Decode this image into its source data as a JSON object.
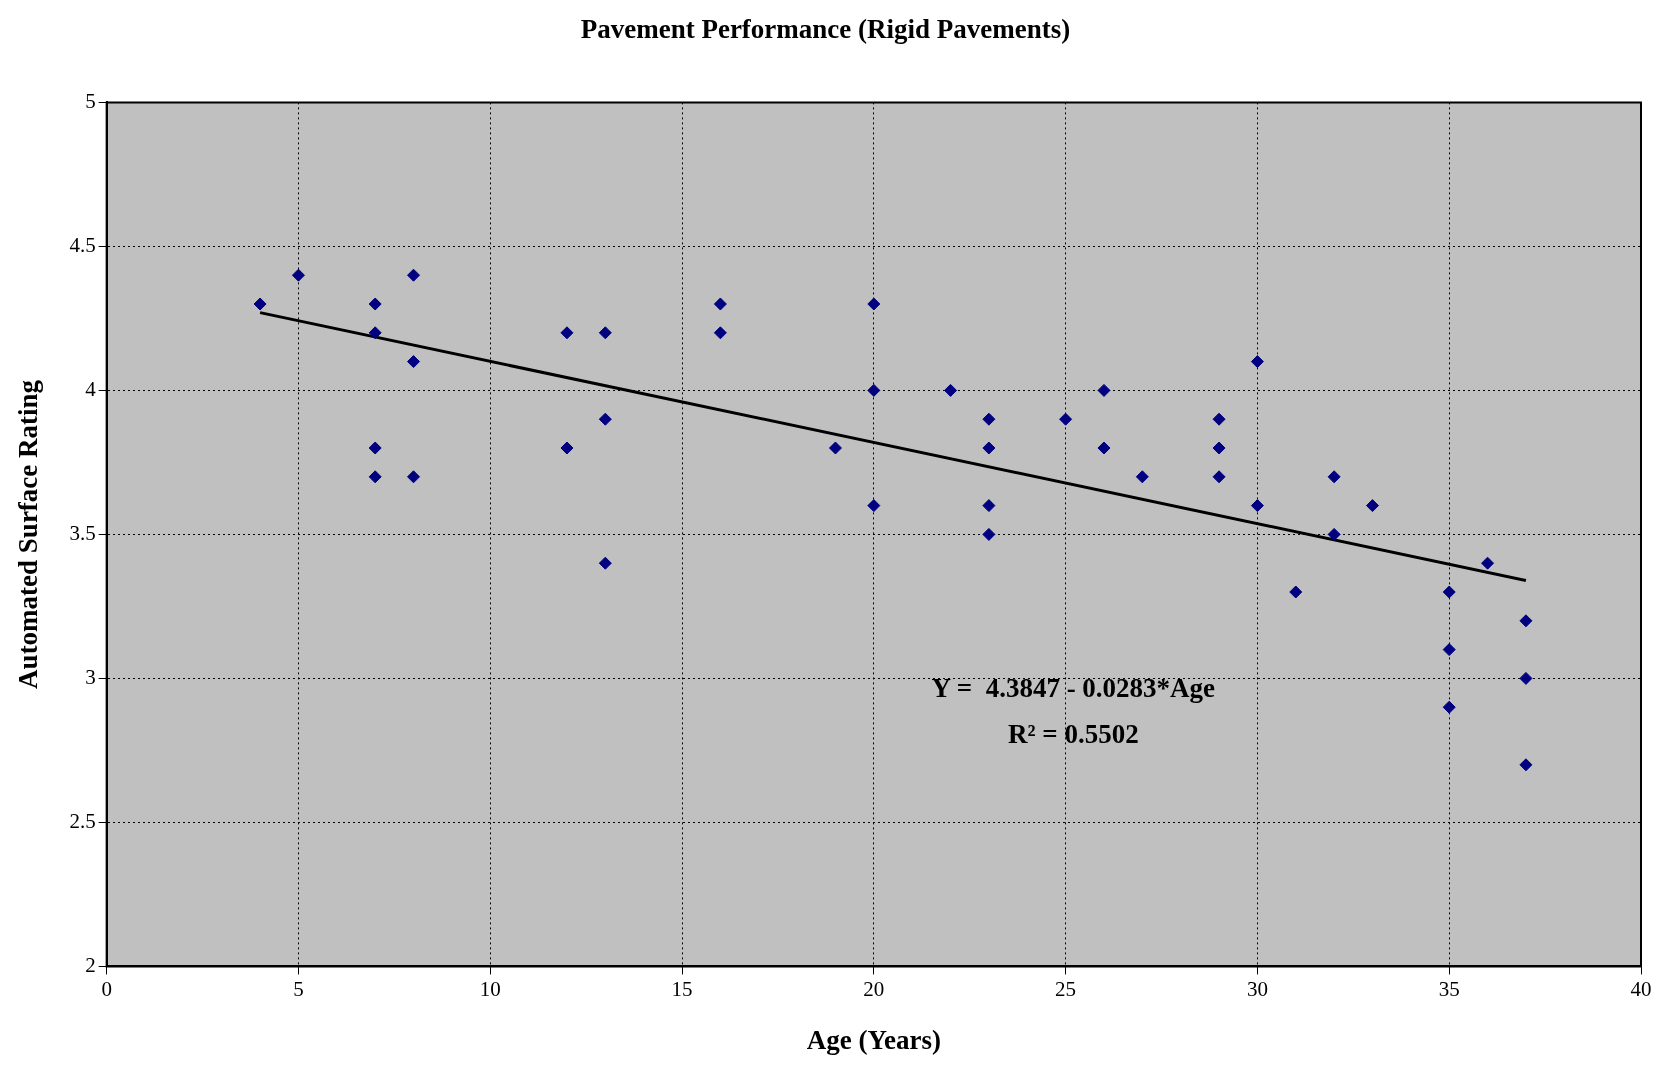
{
  "chart_data": {
    "type": "scatter",
    "title": "Pavement Performance (Rigid Pavements)",
    "xlabel": "Age (Years)",
    "ylabel": "Automated Surface Rating",
    "xlim": [
      0,
      40
    ],
    "xticks": [
      0,
      5,
      10,
      15,
      20,
      25,
      30,
      35,
      40
    ],
    "ylim": [
      2,
      5
    ],
    "yticks": [
      2,
      2.5,
      3,
      3.5,
      4,
      4.5,
      5
    ],
    "grid": true,
    "legend": false,
    "marker": "diamond",
    "series": [
      {
        "color": "#000080",
        "x": [
          4,
          5,
          7,
          7,
          7,
          7,
          8,
          8,
          8,
          12,
          12,
          13,
          13,
          13,
          16,
          16,
          19,
          20,
          20,
          20,
          22,
          23,
          23,
          23,
          23,
          25,
          26,
          26,
          27,
          29,
          29,
          29,
          30,
          30,
          31,
          32,
          32,
          33,
          35,
          35,
          35,
          36,
          37,
          37,
          37
        ],
        "values": [
          4.3,
          4.4,
          4.3,
          4.2,
          3.8,
          3.7,
          4.4,
          4.1,
          3.7,
          4.2,
          3.8,
          4.2,
          3.9,
          3.4,
          4.3,
          4.2,
          3.8,
          4.3,
          4.0,
          3.6,
          4.0,
          3.9,
          3.8,
          3.6,
          3.5,
          3.9,
          4.0,
          3.8,
          3.7,
          3.9,
          3.8,
          3.7,
          4.1,
          3.6,
          3.3,
          3.7,
          3.5,
          3.6,
          3.3,
          3.1,
          2.9,
          3.4,
          3.2,
          3.0,
          2.7
        ]
      },
      {
        "type": "line",
        "color": "#000000",
        "marker": "none",
        "x": [
          4,
          37
        ],
        "values": [
          4.27,
          3.34
        ]
      }
    ],
    "annotations": [
      "Y =  4.3847 - 0.0283*Age",
      "R² = 0.5502"
    ]
  }
}
